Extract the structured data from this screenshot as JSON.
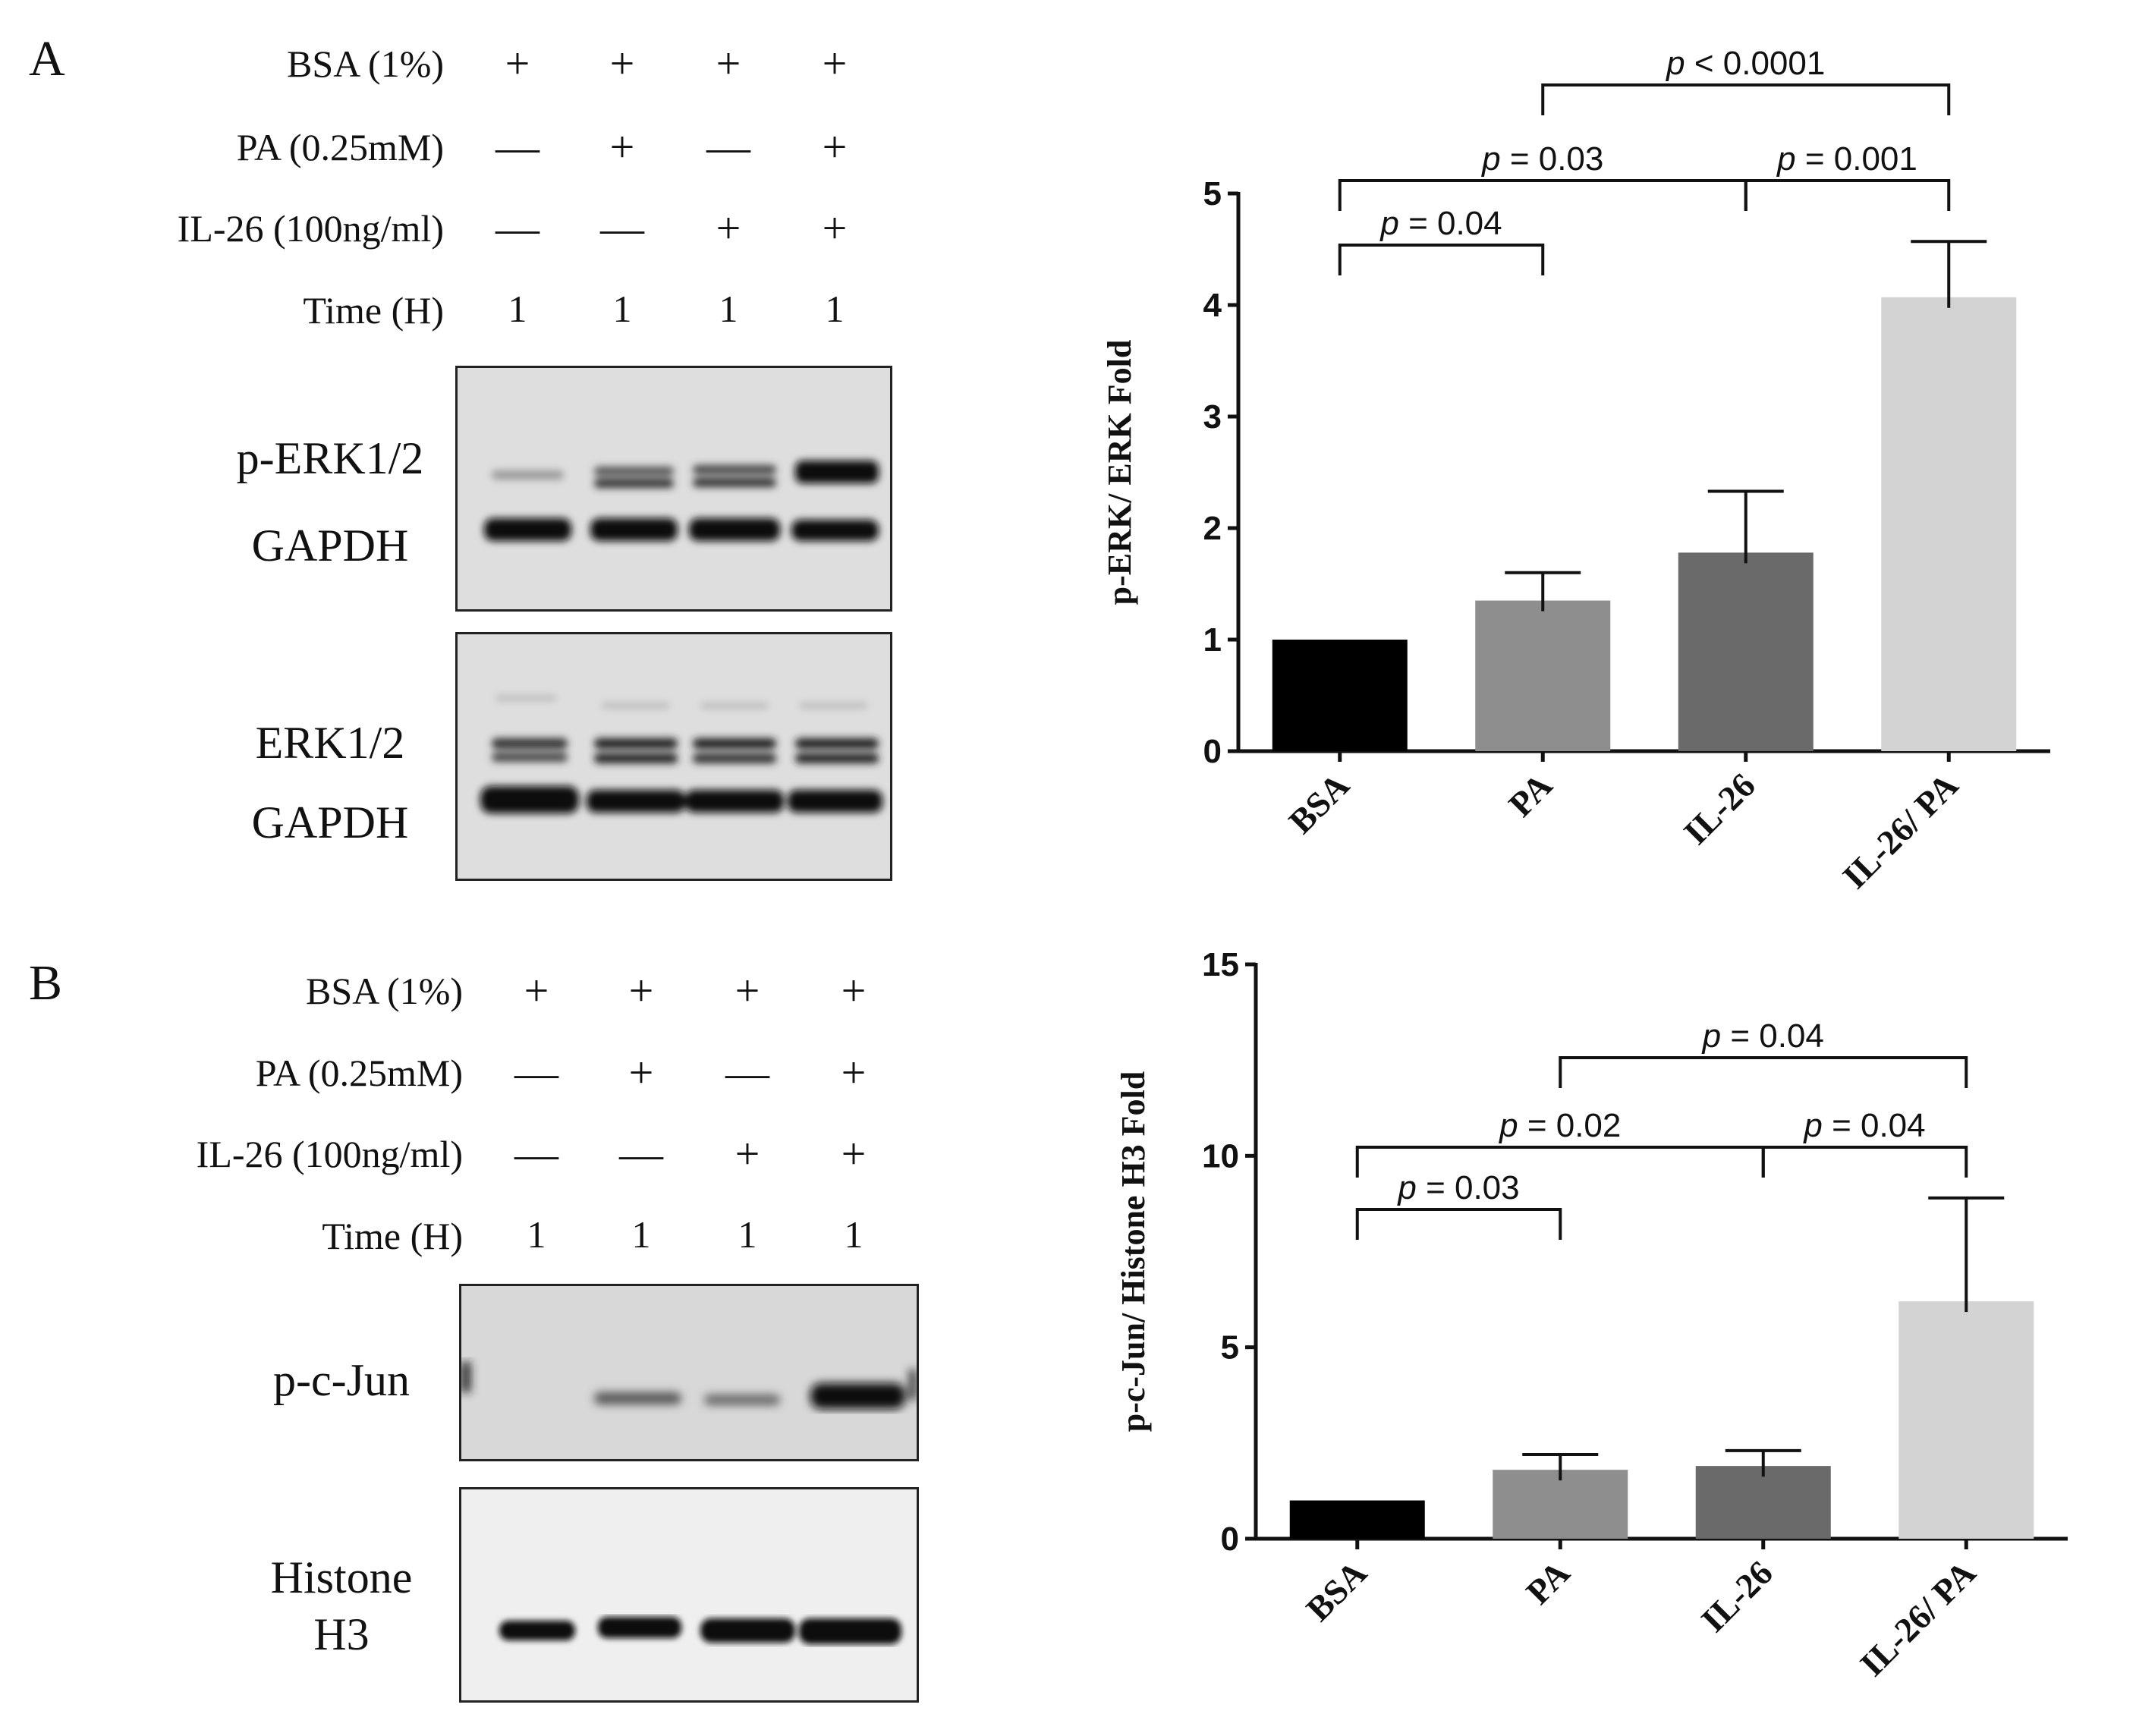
{
  "panel_a": {
    "letter": "A",
    "conditions": [
      {
        "label": "BSA (1%)",
        "symbols": [
          "+",
          "+",
          "+",
          "+"
        ]
      },
      {
        "label": "PA (0.25mM)",
        "symbols": [
          "—",
          "+",
          "—",
          "+"
        ]
      },
      {
        "label": "IL-26 (100ng/ml)",
        "symbols": [
          "—",
          "—",
          "+",
          "+"
        ]
      },
      {
        "label": "Time  (H)",
        "symbols": [
          "1",
          "1",
          "1",
          "1"
        ]
      }
    ],
    "blot_labels": [
      "p-ERK1/2",
      "GAPDH",
      "ERK1/2",
      "GAPDH"
    ]
  },
  "panel_b": {
    "letter": "B",
    "conditions": [
      {
        "label": "BSA (1%)",
        "symbols": [
          "+",
          "+",
          "+",
          "+"
        ]
      },
      {
        "label": "PA (0.25mM)",
        "symbols": [
          "—",
          "+",
          "—",
          "+"
        ]
      },
      {
        "label": "IL-26 (100ng/ml)",
        "symbols": [
          "—",
          "—",
          "+",
          "+"
        ]
      },
      {
        "label": "Time  (H)",
        "symbols": [
          "1",
          "1",
          "1",
          "1"
        ]
      }
    ],
    "blot_labels": [
      "p-c-Jun",
      "Histone",
      "H3"
    ]
  },
  "chart_data": [
    {
      "type": "bar",
      "categories": [
        "BSA",
        "PA",
        "IL-26",
        "IL-26/ PA"
      ],
      "values": [
        1.0,
        1.35,
        1.78,
        4.07
      ],
      "errors": [
        0.0,
        0.25,
        0.55,
        0.5
      ],
      "colors": [
        "#000000",
        "#8e8e8e",
        "#6a6a6a",
        "#d3d3d3"
      ],
      "ylabel": "p-ERK/ ERK Fold",
      "ylim": [
        0,
        5
      ],
      "yticks": [
        0,
        1,
        2,
        3,
        4,
        5
      ],
      "significance": [
        {
          "from": 0,
          "to": 1,
          "label": "p = 0.04"
        },
        {
          "from": 0,
          "to": 2,
          "label": "p = 0.03"
        },
        {
          "from": 2,
          "to": 3,
          "label": "p = 0.001"
        },
        {
          "from": 1,
          "to": 3,
          "label": "p < 0.0001"
        }
      ]
    },
    {
      "type": "bar",
      "categories": [
        "BSA",
        "PA",
        "IL-26",
        "IL-26/ PA"
      ],
      "values": [
        1.0,
        1.8,
        1.9,
        6.2
      ],
      "errors": [
        0.0,
        0.4,
        0.4,
        2.7
      ],
      "colors": [
        "#000000",
        "#8e8e8e",
        "#6a6a6a",
        "#d3d3d3"
      ],
      "ylabel": "p-c-Jun/ Histone H3 Fold",
      "ylim": [
        0,
        15
      ],
      "yticks": [
        0,
        5,
        10,
        15
      ],
      "significance": [
        {
          "from": 0,
          "to": 1,
          "label": "p = 0.03"
        },
        {
          "from": 0,
          "to": 2,
          "label": "p = 0.02"
        },
        {
          "from": 2,
          "to": 3,
          "label": "p = 0.04"
        },
        {
          "from": 1,
          "to": 3,
          "label": "p = 0.04"
        }
      ]
    }
  ]
}
